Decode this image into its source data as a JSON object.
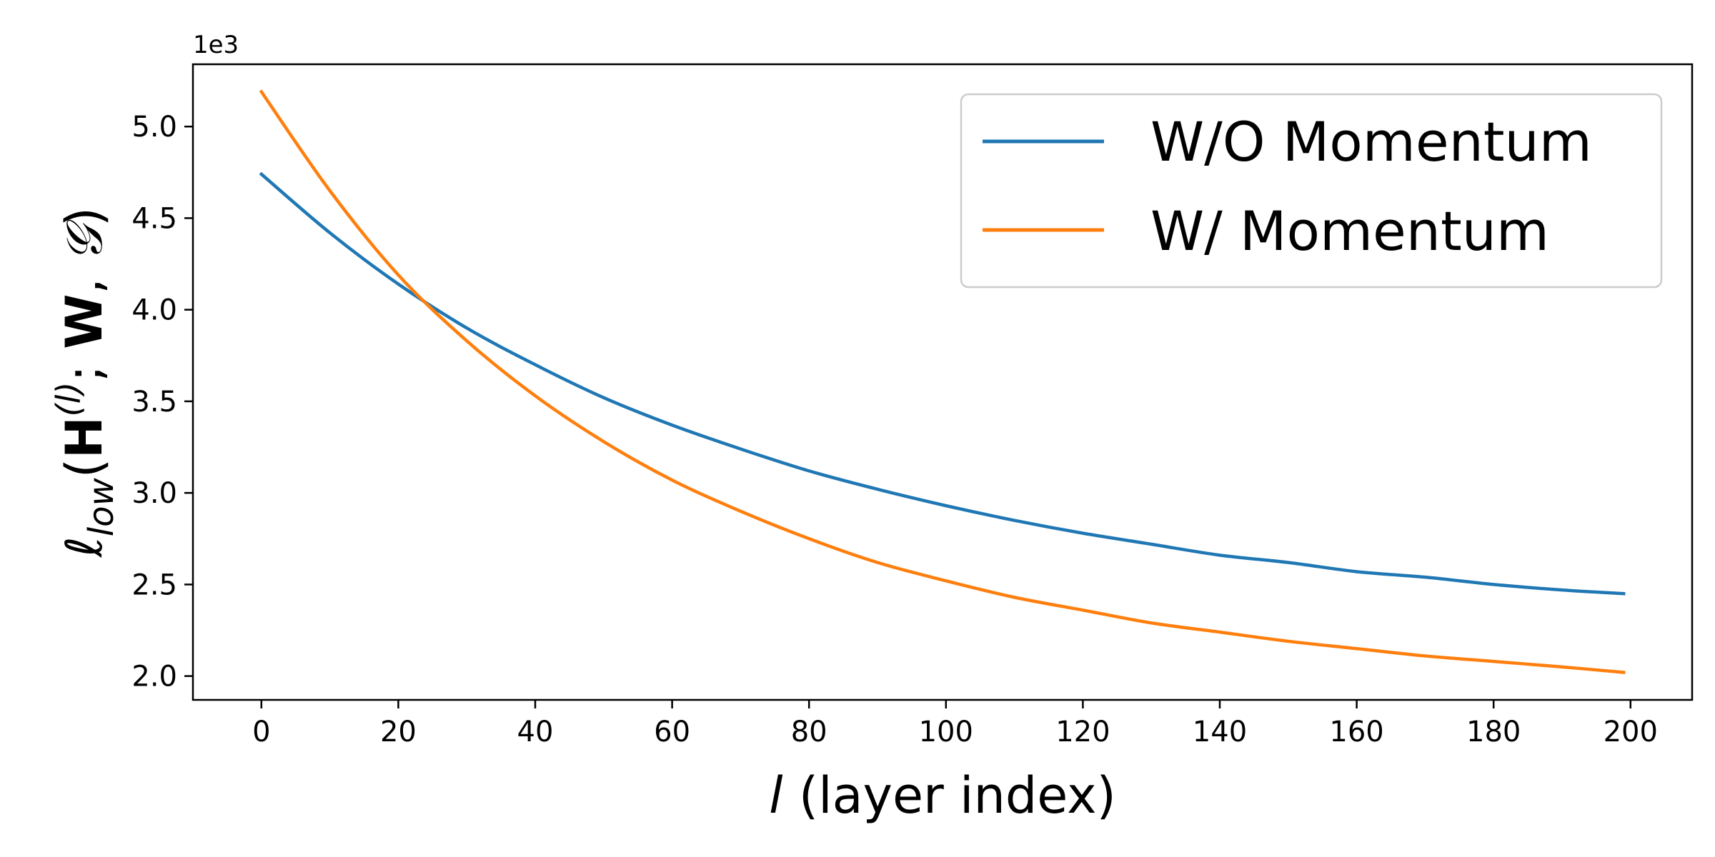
{
  "chart_data": {
    "type": "line",
    "title": "",
    "xlabel": "(layer index)",
    "xlabel_var": "l",
    "ylabel": {
      "ell": "ℓ",
      "sub": "low",
      "open": "(",
      "H": "H",
      "sup": "(l)",
      "sep": ";",
      "W": "W",
      "comma": ",",
      "G": "𝒢",
      "close": ")"
    },
    "y_offset_label": "1e3",
    "xlim": [
      -10,
      209
    ],
    "ylim": [
      1.87,
      5.34
    ],
    "x_ticks": [
      0,
      20,
      40,
      60,
      80,
      100,
      120,
      140,
      160,
      180,
      200
    ],
    "y_ticks": [
      2.0,
      2.5,
      3.0,
      3.5,
      4.0,
      4.5,
      5.0
    ],
    "x_tick_labels": [
      "0",
      "20",
      "40",
      "60",
      "80",
      "100",
      "120",
      "140",
      "160",
      "180",
      "200"
    ],
    "y_tick_labels": [
      "2.0",
      "2.5",
      "3.0",
      "3.5",
      "4.0",
      "4.5",
      "5.0"
    ],
    "grid": false,
    "legend_position": "top-right",
    "x": [
      0,
      10,
      20,
      30,
      40,
      50,
      60,
      70,
      80,
      90,
      100,
      110,
      120,
      130,
      140,
      150,
      160,
      170,
      180,
      190,
      199
    ],
    "series": [
      {
        "name": "W/O Momentum",
        "color": "#1f77b4",
        "values": [
          4.74,
          4.42,
          4.14,
          3.9,
          3.7,
          3.52,
          3.37,
          3.24,
          3.12,
          3.02,
          2.93,
          2.85,
          2.78,
          2.72,
          2.66,
          2.62,
          2.57,
          2.54,
          2.5,
          2.47,
          2.45
        ]
      },
      {
        "name": "W/ Momentum",
        "color": "#ff7f0e",
        "values": [
          5.19,
          4.65,
          4.19,
          3.83,
          3.53,
          3.28,
          3.07,
          2.9,
          2.75,
          2.62,
          2.52,
          2.43,
          2.36,
          2.29,
          2.24,
          2.19,
          2.15,
          2.11,
          2.08,
          2.05,
          2.02
        ]
      }
    ]
  }
}
